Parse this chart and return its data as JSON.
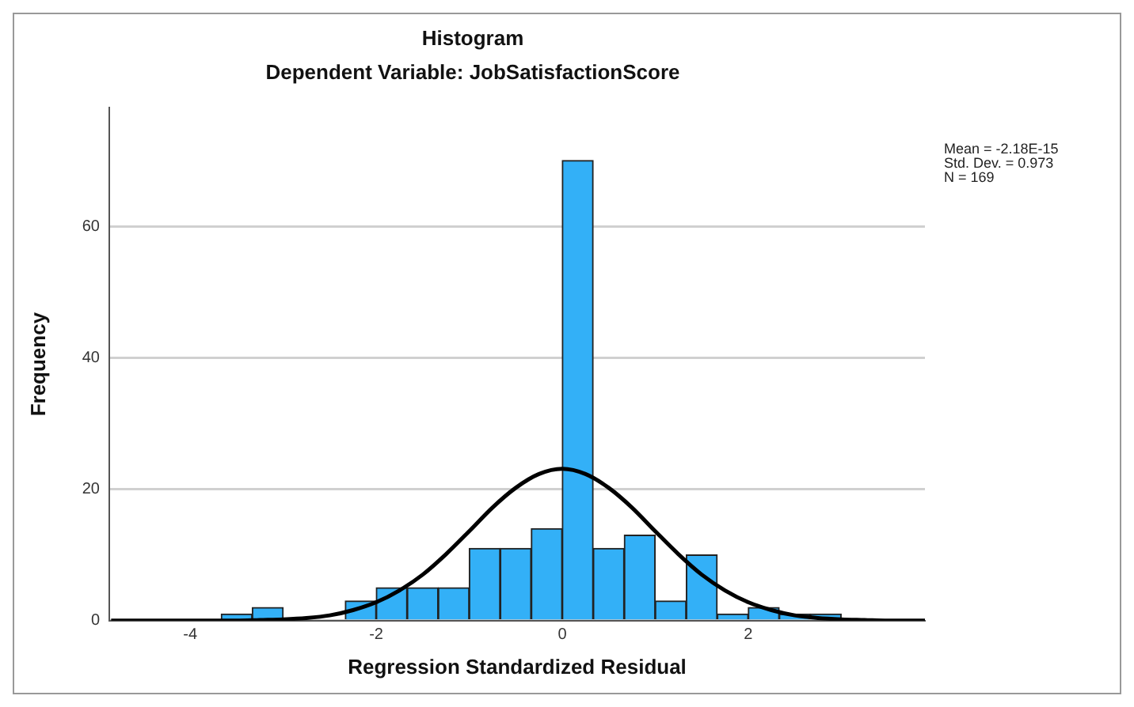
{
  "chart_data": {
    "type": "histogram",
    "title": "Histogram",
    "subtitle": "Dependent Variable: JobSatisfactionScore",
    "xlabel": "Regression Standardized Residual",
    "ylabel": "Frequency",
    "series": [
      {
        "color": "#33b0f7",
        "bins": [
          -3.667,
          -3.333,
          -3,
          -2.667,
          -2.333,
          -2,
          -1.667,
          -1.333,
          -1,
          -0.667,
          -0.333,
          0,
          0.333,
          0.667,
          1,
          1.333,
          1.667,
          2,
          2.333,
          2.667,
          3
        ],
        "values": [
          1,
          2,
          0,
          0,
          3,
          5,
          5,
          5,
          11,
          11,
          14,
          70,
          11,
          13,
          3,
          10,
          1,
          2,
          1,
          1
        ]
      },
      {
        "type": "line",
        "color": "#000000",
        "x": [
          -4.85,
          -4,
          -3.5,
          -3.25,
          -3,
          -2.75,
          -2.5,
          -2.25,
          -2,
          -1.75,
          -1.5,
          -1.25,
          -1,
          -0.75,
          -0.5,
          -0.25,
          0,
          0.25,
          0.5,
          0.75,
          1,
          1.25,
          1.5,
          1.75,
          2,
          2.25,
          2.5,
          2.75,
          3,
          3.25,
          3.5,
          3.9
        ],
        "values": [
          0,
          0,
          0,
          0.1,
          0.2,
          0.4,
          0.8,
          1.6,
          2.8,
          4.6,
          7,
          10.1,
          13.6,
          17.2,
          20.2,
          22.3,
          23.1,
          22.3,
          20.2,
          17.2,
          13.6,
          10.1,
          7,
          4.6,
          2.8,
          1.6,
          0.8,
          0.4,
          0.2,
          0.1,
          0,
          0
        ]
      }
    ],
    "xlim": [
      -4.87,
      3.9
    ],
    "xticks": [
      -4,
      -2,
      0,
      2
    ],
    "ylim": [
      0,
      78
    ],
    "yticks": [
      0,
      20,
      40,
      60
    ],
    "grid": "y",
    "legend": false,
    "annotations": [
      "Mean = -2.18E-15",
      "Std. Dev. = 0.973",
      "N = 169"
    ]
  }
}
